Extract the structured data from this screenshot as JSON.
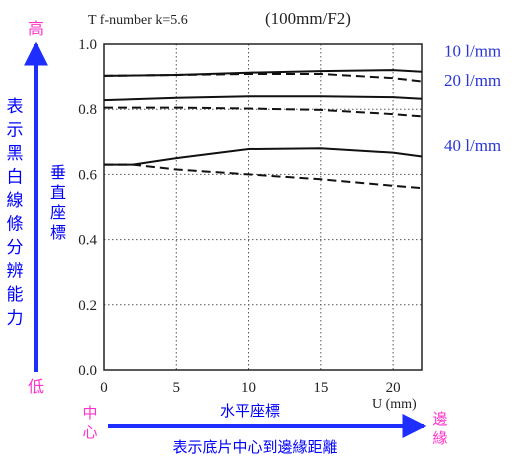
{
  "chart_data": {
    "type": "line",
    "header_left": "T  f-number k=5.6",
    "header_right": "(100mm/F2)",
    "x_ticks": [
      "0",
      "5",
      "10",
      "15",
      "20"
    ],
    "x_unit": "U (mm)",
    "y_ticks": [
      "0.0",
      "0.2",
      "0.4",
      "0.6",
      "0.8",
      "1.0"
    ],
    "xlim": [
      0,
      22
    ],
    "ylim": [
      0,
      1.0
    ],
    "grid": true,
    "series": [
      {
        "name": "10 l/mm",
        "style": "solid",
        "x": [
          0,
          5,
          10,
          15,
          20,
          22
        ],
        "y": [
          0.902,
          0.905,
          0.912,
          0.917,
          0.92,
          0.915
        ]
      },
      {
        "name": "10 l/mm",
        "style": "dashed",
        "x": [
          0,
          5,
          10,
          15,
          20,
          22
        ],
        "y": [
          0.902,
          0.905,
          0.908,
          0.908,
          0.895,
          0.885
        ]
      },
      {
        "name": "20 l/mm",
        "style": "solid",
        "x": [
          0,
          5,
          10,
          15,
          20,
          22
        ],
        "y": [
          0.828,
          0.835,
          0.84,
          0.84,
          0.837,
          0.832
        ]
      },
      {
        "name": "20 l/mm",
        "style": "dashed",
        "x": [
          0,
          5,
          10,
          15,
          20,
          22
        ],
        "y": [
          0.805,
          0.805,
          0.802,
          0.798,
          0.785,
          0.778
        ]
      },
      {
        "name": "40 l/mm",
        "style": "solid",
        "x": [
          0,
          2,
          5,
          10,
          15,
          20,
          22
        ],
        "y": [
          0.63,
          0.63,
          0.65,
          0.678,
          0.68,
          0.667,
          0.655
        ]
      },
      {
        "name": "40 l/mm",
        "style": "dashed",
        "x": [
          0,
          2,
          5,
          10,
          15,
          20,
          22
        ],
        "y": [
          0.63,
          0.63,
          0.615,
          0.6,
          0.585,
          0.565,
          0.558
        ]
      }
    ],
    "series_labels": [
      {
        "text": "10 l/mm",
        "y": 0.9
      },
      {
        "text": "20 l/mm",
        "y": 0.81
      },
      {
        "text": "40 l/mm",
        "y": 0.61
      }
    ],
    "y_axis_note": "垂直座標",
    "left_arrow": {
      "top": "高",
      "label": "表示黑白線條分辨能力",
      "bottom": "低"
    },
    "bottom_arrow": {
      "left": "中心",
      "label_top": "水平座標",
      "label_bottom": "表示底片中心到邊緣距離",
      "right": "邊緣"
    },
    "colors": {
      "cjk_pink": "#ff33cc",
      "cjk_blue": "#0000ff",
      "arrow_blue": "#1e2eff",
      "label_blue": "#2a35d8",
      "line": "#111111"
    }
  }
}
